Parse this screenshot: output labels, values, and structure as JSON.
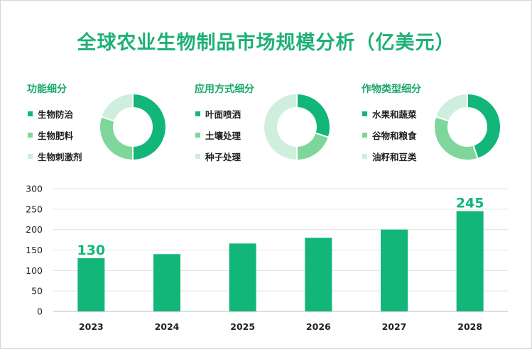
{
  "title": "全球农业生物制品市场规模分析（亿美元）",
  "colors": {
    "dark": "#13b679",
    "mid": "#7fd69a",
    "light": "#cfeedd",
    "title": "#1db176"
  },
  "donuts": [
    {
      "title": "功能细分",
      "legend": [
        {
          "label": "生物防治",
          "color": "#13b679"
        },
        {
          "label": "生物肥料",
          "color": "#7fd69a"
        },
        {
          "label": "生物刺激剂",
          "color": "#cfeedd"
        }
      ],
      "shares": [
        0.5,
        0.3,
        0.2
      ]
    },
    {
      "title": "应用方式细分",
      "legend": [
        {
          "label": "叶面喷洒",
          "color": "#13b679"
        },
        {
          "label": "土壤处理",
          "color": "#7fd69a"
        },
        {
          "label": "种子处理",
          "color": "#cfeedd"
        }
      ],
      "shares": [
        0.3,
        0.2,
        0.5
      ]
    },
    {
      "title": "作物类型细分",
      "legend": [
        {
          "label": "水果和蔬菜",
          "color": "#13b679"
        },
        {
          "label": "谷物和粮食",
          "color": "#7fd69a"
        },
        {
          "label": "油籽和豆类",
          "color": "#cfeedd"
        }
      ],
      "shares": [
        0.45,
        0.35,
        0.2
      ]
    }
  ],
  "chart_data": {
    "type": "bar",
    "categories": [
      "2023",
      "2024",
      "2025",
      "2026",
      "2027",
      "2028"
    ],
    "values": [
      130,
      140,
      166,
      180,
      200,
      245
    ],
    "data_labels": {
      "2023": "130",
      "2028": "245"
    },
    "yticks": [
      "0",
      "50",
      "100",
      "150",
      "200",
      "250",
      "300"
    ],
    "ylim": [
      0,
      300
    ],
    "grid": true,
    "bar_color": "#13b679"
  }
}
